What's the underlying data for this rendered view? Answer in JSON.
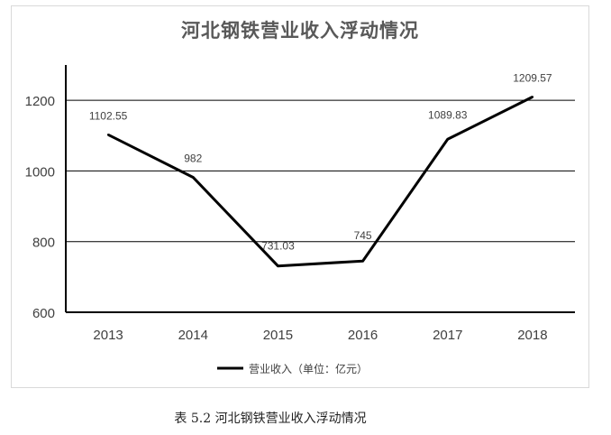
{
  "caption": "表 5.2  河北钢铁营业收入浮动情况",
  "chart_data": {
    "type": "line",
    "title": "河北钢铁营业收入浮动情况",
    "xlabel": "",
    "ylabel": "",
    "categories": [
      "2013",
      "2014",
      "2015",
      "2016",
      "2017",
      "2018"
    ],
    "series": [
      {
        "name": "营业收入（单位：亿元）",
        "values": [
          1102.55,
          982,
          731.03,
          745,
          1089.83,
          1209.57
        ],
        "data_labels": [
          "1102.55",
          "982",
          "731.03",
          "745",
          "1089.83",
          "1209.57"
        ],
        "color": "#000000"
      }
    ],
    "ylim": [
      600,
      1300
    ],
    "yticks": [
      600,
      800,
      1000,
      1200
    ],
    "grid": true,
    "legend_position": "bottom"
  }
}
